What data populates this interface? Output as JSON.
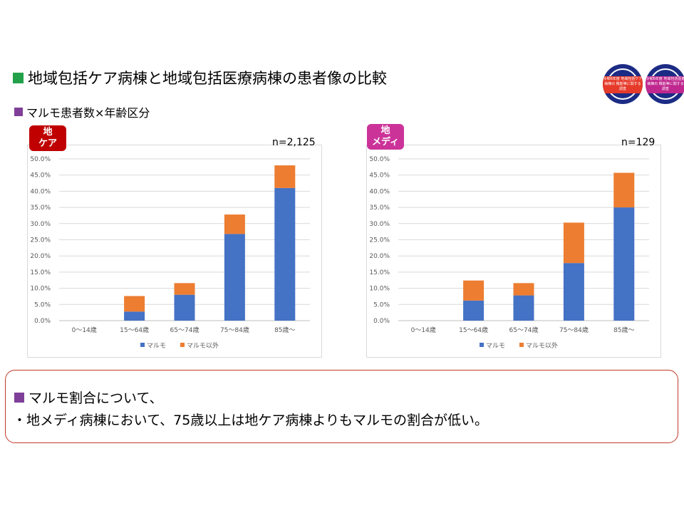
{
  "heading": "地域包括ケア病棟と地域包括医療病棟の患者像の比較",
  "subheading": "マルモ患者数×年齢区分",
  "logos": [
    {
      "text": "令和6年度 地域包括ケア病棟の 機能等に関する調査",
      "color": "#e63a2a"
    },
    {
      "text": "令和6年度 地域包括医療病棟の 機能等に関する調査",
      "color": "#c0278f"
    }
  ],
  "colors": {
    "marumo": "#4472c4",
    "other": "#ed7d31",
    "care_badge": "#c00000",
    "medi_badge": "#cc3399"
  },
  "chart_data": [
    {
      "type": "bar",
      "stacked": true,
      "badge": [
        "地",
        "ケア"
      ],
      "n_label": "n=2,125",
      "categories": [
        "0～14歳",
        "15～64歳",
        "65～74歳",
        "75～84歳",
        "85歳～"
      ],
      "series": [
        {
          "name": "マルモ",
          "values": [
            0,
            2.8,
            8.0,
            26.8,
            41.0
          ]
        },
        {
          "name": "マルモ以外",
          "values": [
            0,
            4.8,
            3.6,
            6.0,
            7.0
          ]
        }
      ],
      "ylim": [
        0,
        50
      ],
      "yticks": [
        "0.0%",
        "5.0%",
        "10.0%",
        "15.0%",
        "20.0%",
        "25.0%",
        "30.0%",
        "35.0%",
        "40.0%",
        "45.0%",
        "50.0%"
      ],
      "legend_position": "bottom",
      "grid": true
    },
    {
      "type": "bar",
      "stacked": true,
      "badge": [
        "地",
        "メディ"
      ],
      "n_label": "n=129",
      "categories": [
        "0～14歳",
        "15～64歳",
        "65～74歳",
        "75～84歳",
        "85歳～"
      ],
      "series": [
        {
          "name": "マルモ",
          "values": [
            0,
            6.2,
            7.8,
            17.8,
            35.0
          ]
        },
        {
          "name": "マルモ以外",
          "values": [
            0,
            6.2,
            3.8,
            12.5,
            10.7
          ]
        }
      ],
      "ylim": [
        0,
        50
      ],
      "yticks": [
        "0.0%",
        "5.0%",
        "10.0%",
        "15.0%",
        "20.0%",
        "25.0%",
        "30.0%",
        "35.0%",
        "40.0%",
        "45.0%",
        "50.0%"
      ],
      "legend_position": "bottom",
      "grid": true
    }
  ],
  "note": {
    "title": "マルモ割合について、",
    "body": "・地メディ病棟において、75歳以上は地ケア病棟よりもマルモの割合が低い。"
  }
}
